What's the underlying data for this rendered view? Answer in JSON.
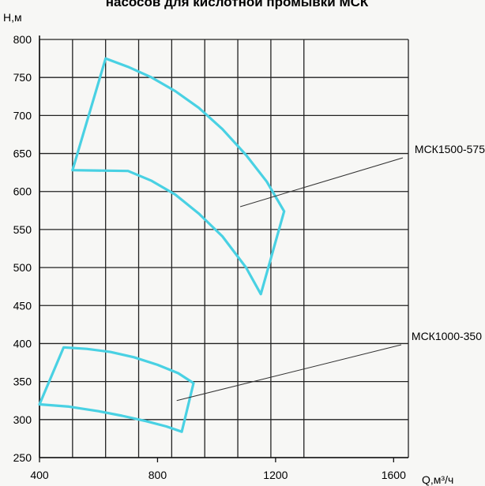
{
  "chart_data": {
    "type": "area",
    "title": "насосов для кислотной промывки МСК",
    "ylabel": "Н,м",
    "xlabel": "Q,м³/ч",
    "xlim": [
      400,
      1650
    ],
    "ylim": [
      250,
      810
    ],
    "y_ticks": [
      250,
      300,
      350,
      400,
      450,
      500,
      550,
      600,
      650,
      700,
      750,
      800
    ],
    "x_ticks": [
      400,
      800,
      1200,
      1600
    ],
    "x_grid": [
      400,
      512,
      624,
      736,
      848,
      960,
      1072,
      1184,
      1296
    ],
    "grid": true,
    "series": [
      {
        "name": "МСК1500-575",
        "color": "#49d1e3",
        "label_anchor": [
          1080,
          580
        ],
        "polygon": [
          [
            624,
            775
          ],
          [
            700,
            764
          ],
          [
            780,
            750
          ],
          [
            860,
            732
          ],
          [
            940,
            710
          ],
          [
            1020,
            682
          ],
          [
            1100,
            648
          ],
          [
            1170,
            613
          ],
          [
            1229,
            574
          ],
          [
            1150,
            465
          ],
          [
            1100,
            500
          ],
          [
            1020,
            541
          ],
          [
            940,
            571
          ],
          [
            860,
            596
          ],
          [
            780,
            614
          ],
          [
            700,
            627
          ],
          [
            512,
            628
          ]
        ]
      },
      {
        "name": "МСК1000-350",
        "color": "#49d1e3",
        "label_anchor": [
          865,
          325
        ],
        "polygon": [
          [
            482,
            395
          ],
          [
            560,
            393
          ],
          [
            640,
            389
          ],
          [
            720,
            382
          ],
          [
            800,
            372
          ],
          [
            870,
            361
          ],
          [
            922,
            348
          ],
          [
            882,
            284
          ],
          [
            830,
            291
          ],
          [
            760,
            298
          ],
          [
            680,
            305
          ],
          [
            600,
            311
          ],
          [
            500,
            317
          ],
          [
            400,
            320
          ]
        ]
      }
    ]
  }
}
